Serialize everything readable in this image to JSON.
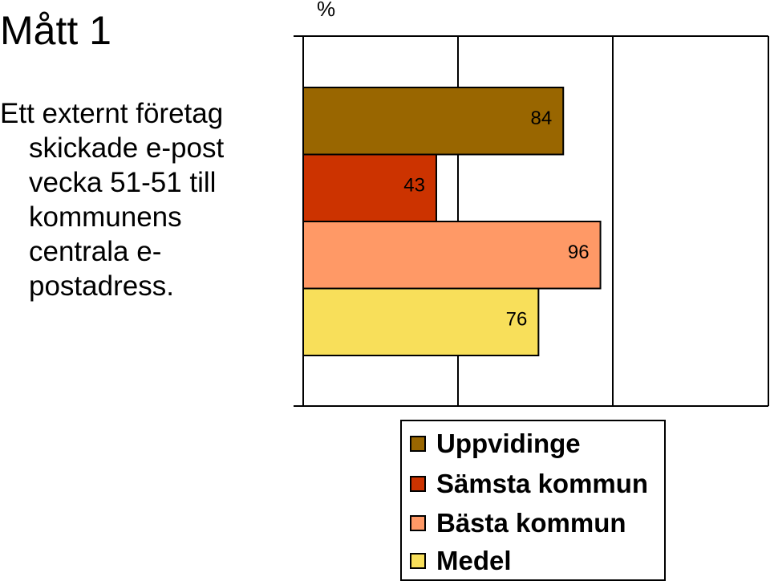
{
  "slide": {
    "title": "Mått 1",
    "description_lines": [
      "Ett externt företag",
      "skickade e-post",
      "vecka 51-51 till",
      "kommunens",
      "centrala e-",
      "postadress."
    ]
  },
  "chart_data": {
    "type": "bar",
    "orientation": "horizontal",
    "unit_label": "%",
    "xlim": [
      0,
      100
    ],
    "series": [
      {
        "name": "Uppvidinge",
        "value": 84,
        "color": "#996600"
      },
      {
        "name": "Sämsta kommun",
        "value": 43,
        "color": "#CC3300"
      },
      {
        "name": "Bästa kommun",
        "value": 96,
        "color": "#FF9966"
      },
      {
        "name": "Medel",
        "value": 76,
        "color": "#F8DF5A"
      }
    ],
    "grid": true,
    "legend_position": "bottom-right"
  }
}
